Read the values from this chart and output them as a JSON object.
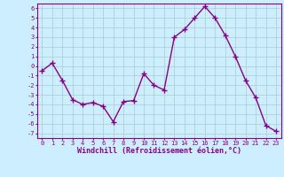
{
  "x": [
    0,
    1,
    2,
    3,
    4,
    5,
    6,
    7,
    8,
    9,
    10,
    11,
    12,
    13,
    14,
    15,
    16,
    17,
    18,
    19,
    20,
    21,
    22,
    23
  ],
  "y": [
    -0.5,
    0.3,
    -1.5,
    -3.5,
    -4.0,
    -3.8,
    -4.2,
    -5.8,
    -3.7,
    -3.6,
    -0.8,
    -2.0,
    -2.5,
    3.0,
    3.8,
    5.0,
    6.2,
    5.0,
    3.2,
    1.0,
    -1.5,
    -3.3,
    -6.2,
    -6.8
  ],
  "line_color": "#880088",
  "marker": "+",
  "marker_color": "#880088",
  "background_color": "#cceeff",
  "grid_color": "#aacccc",
  "xlabel": "Windchill (Refroidissement éolien,°C)",
  "xlabel_color": "#880088",
  "tick_color": "#880088",
  "spine_color": "#880088",
  "ylim": [
    -7.5,
    6.5
  ],
  "xlim": [
    -0.5,
    23.5
  ],
  "yticks": [
    -7,
    -6,
    -5,
    -4,
    -3,
    -2,
    -1,
    0,
    1,
    2,
    3,
    4,
    5,
    6
  ],
  "xticks": [
    0,
    1,
    2,
    3,
    4,
    5,
    6,
    7,
    8,
    9,
    10,
    11,
    12,
    13,
    14,
    15,
    16,
    17,
    18,
    19,
    20,
    21,
    22,
    23
  ],
  "tick_fontsize": 5.0,
  "xlabel_fontsize": 6.0,
  "linewidth": 1.0,
  "marker_size": 4,
  "marker_linewidth": 1.0
}
